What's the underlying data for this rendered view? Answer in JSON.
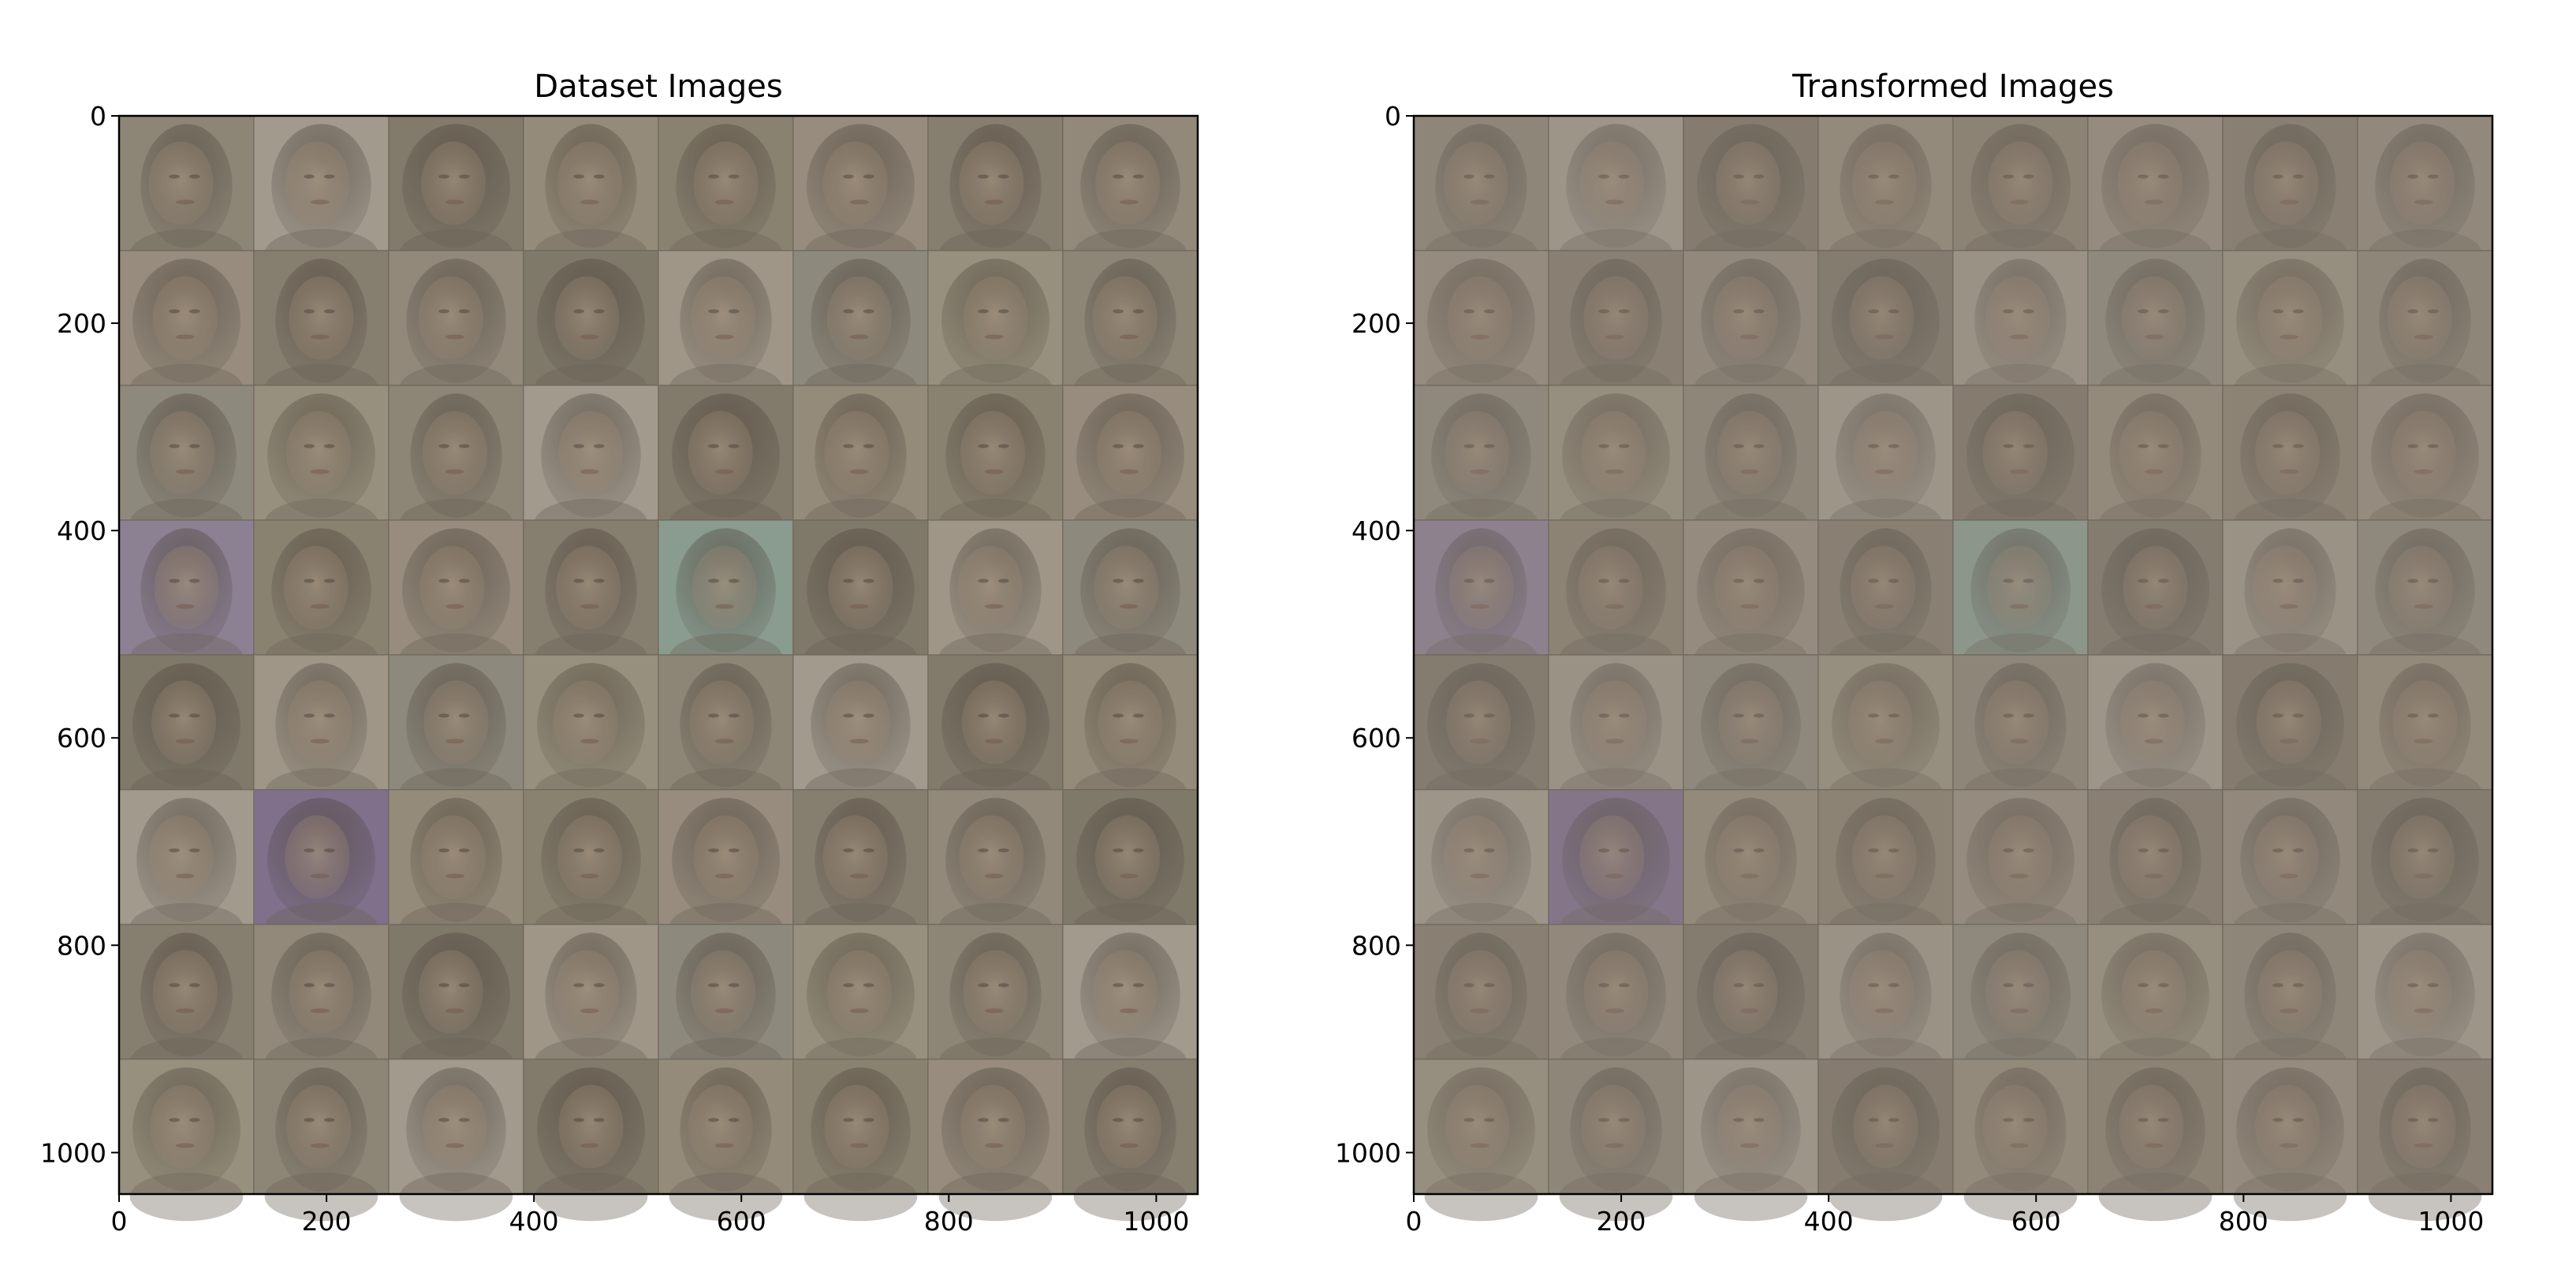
{
  "figure": {
    "panels": [
      {
        "title": "Dataset Images",
        "x_ticks": [
          "0",
          "200",
          "400",
          "600",
          "800",
          "1000"
        ],
        "y_ticks": [
          "0",
          "200",
          "400",
          "600",
          "800",
          "1000"
        ],
        "image_grid": {
          "rows": 8,
          "cols": 8,
          "extent": [
            0,
            1040
          ],
          "content": "photographs of faces",
          "tone": "faded"
        }
      },
      {
        "title": "Transformed Images",
        "x_ticks": [
          "0",
          "200",
          "400",
          "600",
          "800",
          "1000"
        ],
        "y_ticks": [
          "0",
          "200",
          "400",
          "600",
          "800",
          "1000"
        ],
        "image_grid": {
          "rows": 8,
          "cols": 8,
          "extent": [
            0,
            1040
          ],
          "content": "photographs of faces",
          "tone": "more faded"
        }
      }
    ],
    "colors": {
      "tile_palette": [
        "#8e8676",
        "#948a7c",
        "#7f7666",
        "#a49a8c",
        "#8a806f",
        "#9c937f",
        "#857b6c",
        "#a89f92",
        "#7c7566",
        "#978c7a",
        "#8f8a7e",
        "#9a8e7f"
      ],
      "accent_tiles": [
        "#6e6488",
        "#7d6a91",
        "#c89a8a",
        "#8aa095",
        "#8c7e9a"
      ]
    }
  }
}
